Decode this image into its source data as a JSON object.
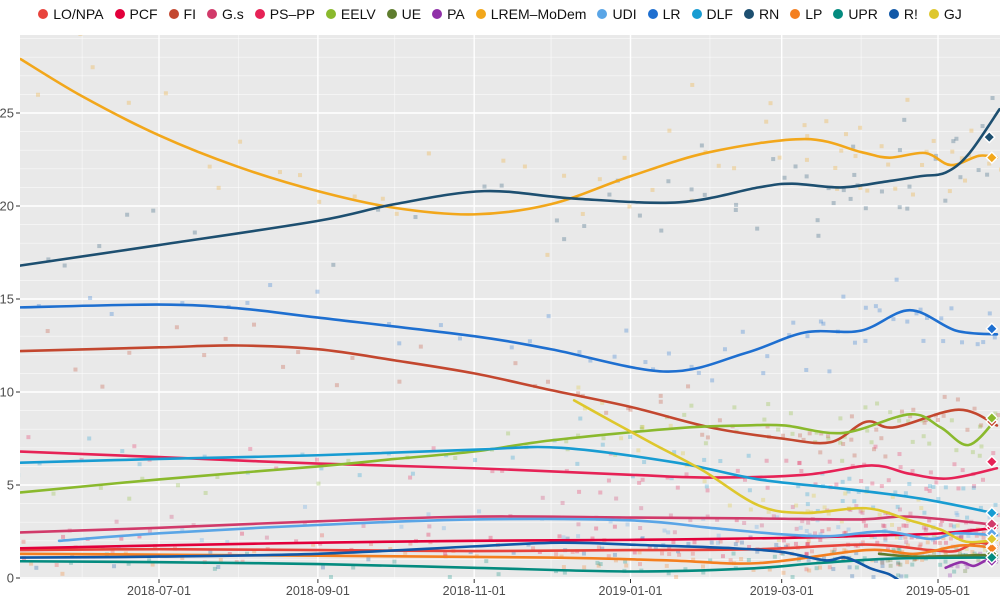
{
  "figure": {
    "description": "Smoothed opinion polling chart, parties vote share (%) over time",
    "panel_background": "#e9e9e9",
    "grid_color": "#ffffff",
    "axis_text_color": "#4d4d4d",
    "tick_mark_color": "#333333"
  },
  "chart_data": {
    "type": "line",
    "title": "",
    "xlabel": "",
    "ylabel": "",
    "x_axis": {
      "range": [
        "2018-05-08",
        "2019-05-25"
      ],
      "tick_labels": [
        "2018-07-01",
        "2018-09-01",
        "2018-11-01",
        "2019-01-01",
        "2019-03-01",
        "2019-05-01"
      ],
      "minor_gridlines": "monthly"
    },
    "y_axis": {
      "range": [
        -0.5,
        29.2
      ],
      "tick_labels": [
        0,
        5,
        10,
        15,
        20,
        25
      ],
      "minor_gridline_step": 1
    },
    "legend_position": "top",
    "grid": true,
    "scatter": {
      "seed": 20190526,
      "alpha": 0.28,
      "size": 4
    },
    "series": [
      {
        "name": "LO/NPA",
        "color": "#e8433c",
        "end_marker": [
          "2019-05-22",
          1.7
        ],
        "points": [
          [
            "2018-05-08",
            1.5
          ],
          [
            "2018-07-01",
            1.55
          ],
          [
            "2018-09-01",
            1.5
          ],
          [
            "2018-11-01",
            1.45
          ],
          [
            "2019-01-01",
            1.5
          ],
          [
            "2019-02-20",
            1.55
          ],
          [
            "2019-04-03",
            1.8
          ],
          [
            "2019-04-28",
            1.5
          ],
          [
            "2019-05-08",
            1.45
          ],
          [
            "2019-05-16",
            1.9
          ],
          [
            "2019-05-24",
            1.7
          ]
        ]
      },
      {
        "name": "PCF",
        "color": "#e2003b",
        "end_marker": [
          "2019-05-22",
          2.7
        ],
        "points": [
          [
            "2018-05-08",
            1.6
          ],
          [
            "2018-07-01",
            1.75
          ],
          [
            "2018-09-01",
            1.9
          ],
          [
            "2018-11-01",
            2.0
          ],
          [
            "2019-01-01",
            2.05
          ],
          [
            "2019-03-01",
            2.15
          ],
          [
            "2019-04-10",
            2.3
          ],
          [
            "2019-05-02",
            2.4
          ],
          [
            "2019-05-24",
            2.7
          ]
        ]
      },
      {
        "name": "FI",
        "color": "#c3472f",
        "end_marker": [
          "2019-05-22",
          8.4
        ],
        "points": [
          [
            "2018-05-08",
            12.2
          ],
          [
            "2018-07-01",
            12.4
          ],
          [
            "2018-08-01",
            12.5
          ],
          [
            "2018-09-01",
            12.3
          ],
          [
            "2018-10-01",
            11.7
          ],
          [
            "2018-11-01",
            11.0
          ],
          [
            "2018-12-01",
            10.1
          ],
          [
            "2019-01-01",
            9.2
          ],
          [
            "2019-02-01",
            8.1
          ],
          [
            "2019-03-01",
            7.5
          ],
          [
            "2019-03-20",
            7.3
          ],
          [
            "2019-04-03",
            8.4
          ],
          [
            "2019-04-14",
            8.1
          ],
          [
            "2019-05-09",
            9.05
          ],
          [
            "2019-05-24",
            8.2
          ]
        ]
      },
      {
        "name": "G.s",
        "color": "#d13a6a",
        "end_marker": [
          "2019-05-22",
          2.9
        ],
        "points": [
          [
            "2018-05-08",
            2.45
          ],
          [
            "2018-07-01",
            2.7
          ],
          [
            "2018-09-01",
            3.05
          ],
          [
            "2018-11-01",
            3.3
          ],
          [
            "2019-01-01",
            3.25
          ],
          [
            "2019-02-20",
            3.2
          ],
          [
            "2019-04-01",
            3.15
          ],
          [
            "2019-04-20",
            3.3
          ],
          [
            "2019-05-24",
            2.85
          ]
        ]
      },
      {
        "name": "PS–PP",
        "color": "#e62256",
        "end_marker": [
          "2019-05-22",
          6.25
        ],
        "points": [
          [
            "2018-05-08",
            6.8
          ],
          [
            "2018-07-01",
            6.5
          ],
          [
            "2018-09-01",
            6.15
          ],
          [
            "2018-11-01",
            5.9
          ],
          [
            "2019-01-01",
            5.55
          ],
          [
            "2019-02-01",
            5.4
          ],
          [
            "2019-03-10",
            5.55
          ],
          [
            "2019-04-05",
            6.05
          ],
          [
            "2019-04-20",
            5.6
          ],
          [
            "2019-05-05",
            5.35
          ],
          [
            "2019-05-24",
            5.9
          ]
        ]
      },
      {
        "name": "EELV",
        "color": "#8ab92d",
        "end_marker": [
          "2019-05-22",
          8.6
        ],
        "points": [
          [
            "2018-05-08",
            4.6
          ],
          [
            "2018-07-01",
            5.3
          ],
          [
            "2018-09-01",
            6.0
          ],
          [
            "2018-10-01",
            6.4
          ],
          [
            "2018-11-01",
            6.8
          ],
          [
            "2018-12-01",
            7.4
          ],
          [
            "2019-01-19",
            8.05
          ],
          [
            "2019-02-15",
            8.2
          ],
          [
            "2019-03-02",
            8.2
          ],
          [
            "2019-03-25",
            7.8
          ],
          [
            "2019-04-20",
            8.8
          ],
          [
            "2019-05-02",
            8.1
          ],
          [
            "2019-05-13",
            7.15
          ],
          [
            "2019-05-24",
            8.6
          ]
        ]
      },
      {
        "name": "UE",
        "color": "#5f7d2e",
        "end_marker": [
          "2019-05-22",
          1.3
        ],
        "points": [
          [
            "2019-04-08",
            1.3
          ],
          [
            "2019-04-22",
            1.15
          ],
          [
            "2019-05-10",
            1.2
          ],
          [
            "2019-05-24",
            1.25
          ]
        ]
      },
      {
        "name": "PA",
        "color": "#9030a8",
        "end_marker": [
          "2019-05-22",
          0.9
        ],
        "points": [
          [
            "2019-05-04",
            0.55
          ],
          [
            "2019-05-10",
            0.85
          ],
          [
            "2019-05-15",
            0.65
          ],
          [
            "2019-05-20",
            0.95
          ],
          [
            "2019-05-24",
            0.9
          ]
        ]
      },
      {
        "name": "LREM–MoDem",
        "color": "#f2a71b",
        "end_marker": [
          "2019-05-22",
          22.6
        ],
        "points": [
          [
            "2018-05-08",
            27.9
          ],
          [
            "2018-06-01",
            25.9
          ],
          [
            "2018-07-01",
            23.8
          ],
          [
            "2018-08-01",
            22.1
          ],
          [
            "2018-09-01",
            20.8
          ],
          [
            "2018-10-01",
            19.9
          ],
          [
            "2018-11-01",
            19.55
          ],
          [
            "2018-12-01",
            20.1
          ],
          [
            "2019-01-01",
            21.6
          ],
          [
            "2019-02-01",
            22.9
          ],
          [
            "2019-03-10",
            23.6
          ],
          [
            "2019-04-01",
            22.9
          ],
          [
            "2019-04-12",
            22.6
          ],
          [
            "2019-04-26",
            22.85
          ],
          [
            "2019-05-06",
            22.2
          ],
          [
            "2019-05-17",
            22.7
          ],
          [
            "2019-05-24",
            22.6
          ]
        ]
      },
      {
        "name": "UDI",
        "color": "#5aa5e6",
        "end_marker": [
          "2019-05-22",
          2.4
        ],
        "points": [
          [
            "2018-05-23",
            2.0
          ],
          [
            "2018-07-01",
            2.4
          ],
          [
            "2018-09-01",
            2.85
          ],
          [
            "2018-11-01",
            3.15
          ],
          [
            "2019-01-01",
            3.1
          ],
          [
            "2019-02-01",
            2.7
          ],
          [
            "2019-03-01",
            2.35
          ],
          [
            "2019-03-20",
            2.25
          ],
          [
            "2019-04-10",
            2.5
          ],
          [
            "2019-04-28",
            2.1
          ],
          [
            "2019-05-08",
            2.4
          ],
          [
            "2019-05-24",
            2.3
          ]
        ]
      },
      {
        "name": "LR",
        "color": "#1e6fd0",
        "end_marker": [
          "2019-05-22",
          13.4
        ],
        "points": [
          [
            "2018-05-08",
            14.55
          ],
          [
            "2018-07-01",
            14.7
          ],
          [
            "2018-08-01",
            14.5
          ],
          [
            "2018-09-01",
            14.0
          ],
          [
            "2018-11-01",
            13.0
          ],
          [
            "2018-12-01",
            12.3
          ],
          [
            "2019-01-15",
            11.1
          ],
          [
            "2019-02-15",
            12.1
          ],
          [
            "2019-03-10",
            13.2
          ],
          [
            "2019-04-01",
            13.3
          ],
          [
            "2019-04-20",
            14.4
          ],
          [
            "2019-05-08",
            13.3
          ],
          [
            "2019-05-24",
            13.1
          ]
        ]
      },
      {
        "name": "DLF",
        "color": "#189cd2",
        "end_marker": [
          "2019-05-22",
          3.5
        ],
        "points": [
          [
            "2018-05-08",
            6.2
          ],
          [
            "2018-07-01",
            6.4
          ],
          [
            "2018-09-01",
            6.6
          ],
          [
            "2018-11-01",
            6.9
          ],
          [
            "2018-12-05",
            7.0
          ],
          [
            "2019-01-19",
            6.2
          ],
          [
            "2019-02-20",
            5.3
          ],
          [
            "2019-03-25",
            4.8
          ],
          [
            "2019-04-25",
            4.25
          ],
          [
            "2019-05-24",
            3.45
          ]
        ]
      },
      {
        "name": "RN",
        "color": "#1d4f70",
        "end_marker": [
          "2019-05-21",
          23.7
        ],
        "points": [
          [
            "2018-05-08",
            16.8
          ],
          [
            "2018-07-01",
            17.9
          ],
          [
            "2018-09-01",
            19.2
          ],
          [
            "2018-10-01",
            20.1
          ],
          [
            "2018-11-05",
            20.8
          ],
          [
            "2018-12-10",
            20.4
          ],
          [
            "2019-01-20",
            20.2
          ],
          [
            "2019-02-20",
            21.0
          ],
          [
            "2019-03-05",
            21.2
          ],
          [
            "2019-03-24",
            21.0
          ],
          [
            "2019-04-10",
            21.3
          ],
          [
            "2019-04-24",
            21.6
          ],
          [
            "2019-05-04",
            21.8
          ],
          [
            "2019-05-13",
            22.8
          ],
          [
            "2019-05-25",
            25.2
          ]
        ]
      },
      {
        "name": "LP",
        "color": "#f47f20",
        "end_marker": [
          "2019-05-22",
          1.6
        ],
        "points": [
          [
            "2018-05-08",
            1.3
          ],
          [
            "2018-09-01",
            1.2
          ],
          [
            "2018-12-01",
            1.1
          ],
          [
            "2019-01-15",
            0.95
          ],
          [
            "2019-02-20",
            0.8
          ],
          [
            "2019-04-03",
            1.5
          ],
          [
            "2019-04-22",
            1.3
          ],
          [
            "2019-05-10",
            1.75
          ],
          [
            "2019-05-24",
            1.6
          ]
        ]
      },
      {
        "name": "UPR",
        "color": "#048b7f",
        "end_marker": [
          "2019-05-22",
          1.1
        ],
        "points": [
          [
            "2018-05-08",
            0.9
          ],
          [
            "2018-07-01",
            0.85
          ],
          [
            "2018-09-01",
            0.75
          ],
          [
            "2018-11-01",
            0.55
          ],
          [
            "2019-01-01",
            0.35
          ],
          [
            "2019-02-15",
            0.5
          ],
          [
            "2019-03-15",
            0.8
          ],
          [
            "2019-04-15",
            1.05
          ],
          [
            "2019-05-24",
            1.1
          ]
        ]
      },
      {
        "name": "R!",
        "color": "#1158a8",
        "end_marker": null,
        "points": [
          [
            "2018-05-08",
            1.1
          ],
          [
            "2018-07-01",
            1.15
          ],
          [
            "2018-09-01",
            1.3
          ],
          [
            "2018-11-01",
            1.7
          ],
          [
            "2018-12-05",
            1.9
          ],
          [
            "2019-01-10",
            1.75
          ],
          [
            "2019-02-10",
            1.6
          ],
          [
            "2019-03-01",
            1.4
          ],
          [
            "2019-03-18",
            0.95
          ],
          [
            "2019-03-26",
            1.1
          ],
          [
            "2019-04-05",
            0.5
          ],
          [
            "2019-04-12",
            0.2
          ],
          [
            "2019-04-17",
            -0.25
          ]
        ]
      },
      {
        "name": "GJ",
        "color": "#dec72c",
        "end_marker": [
          "2019-05-22",
          2.1
        ],
        "points": [
          [
            "2018-12-10",
            9.55
          ],
          [
            "2018-12-25",
            8.4
          ],
          [
            "2019-01-10",
            7.2
          ],
          [
            "2019-01-29",
            5.8
          ],
          [
            "2019-02-20",
            3.9
          ],
          [
            "2019-03-10",
            3.5
          ],
          [
            "2019-04-03",
            3.75
          ],
          [
            "2019-04-20",
            3.1
          ],
          [
            "2019-05-02",
            2.6
          ],
          [
            "2019-05-12",
            1.95
          ],
          [
            "2019-05-24",
            2.05
          ]
        ]
      }
    ]
  }
}
